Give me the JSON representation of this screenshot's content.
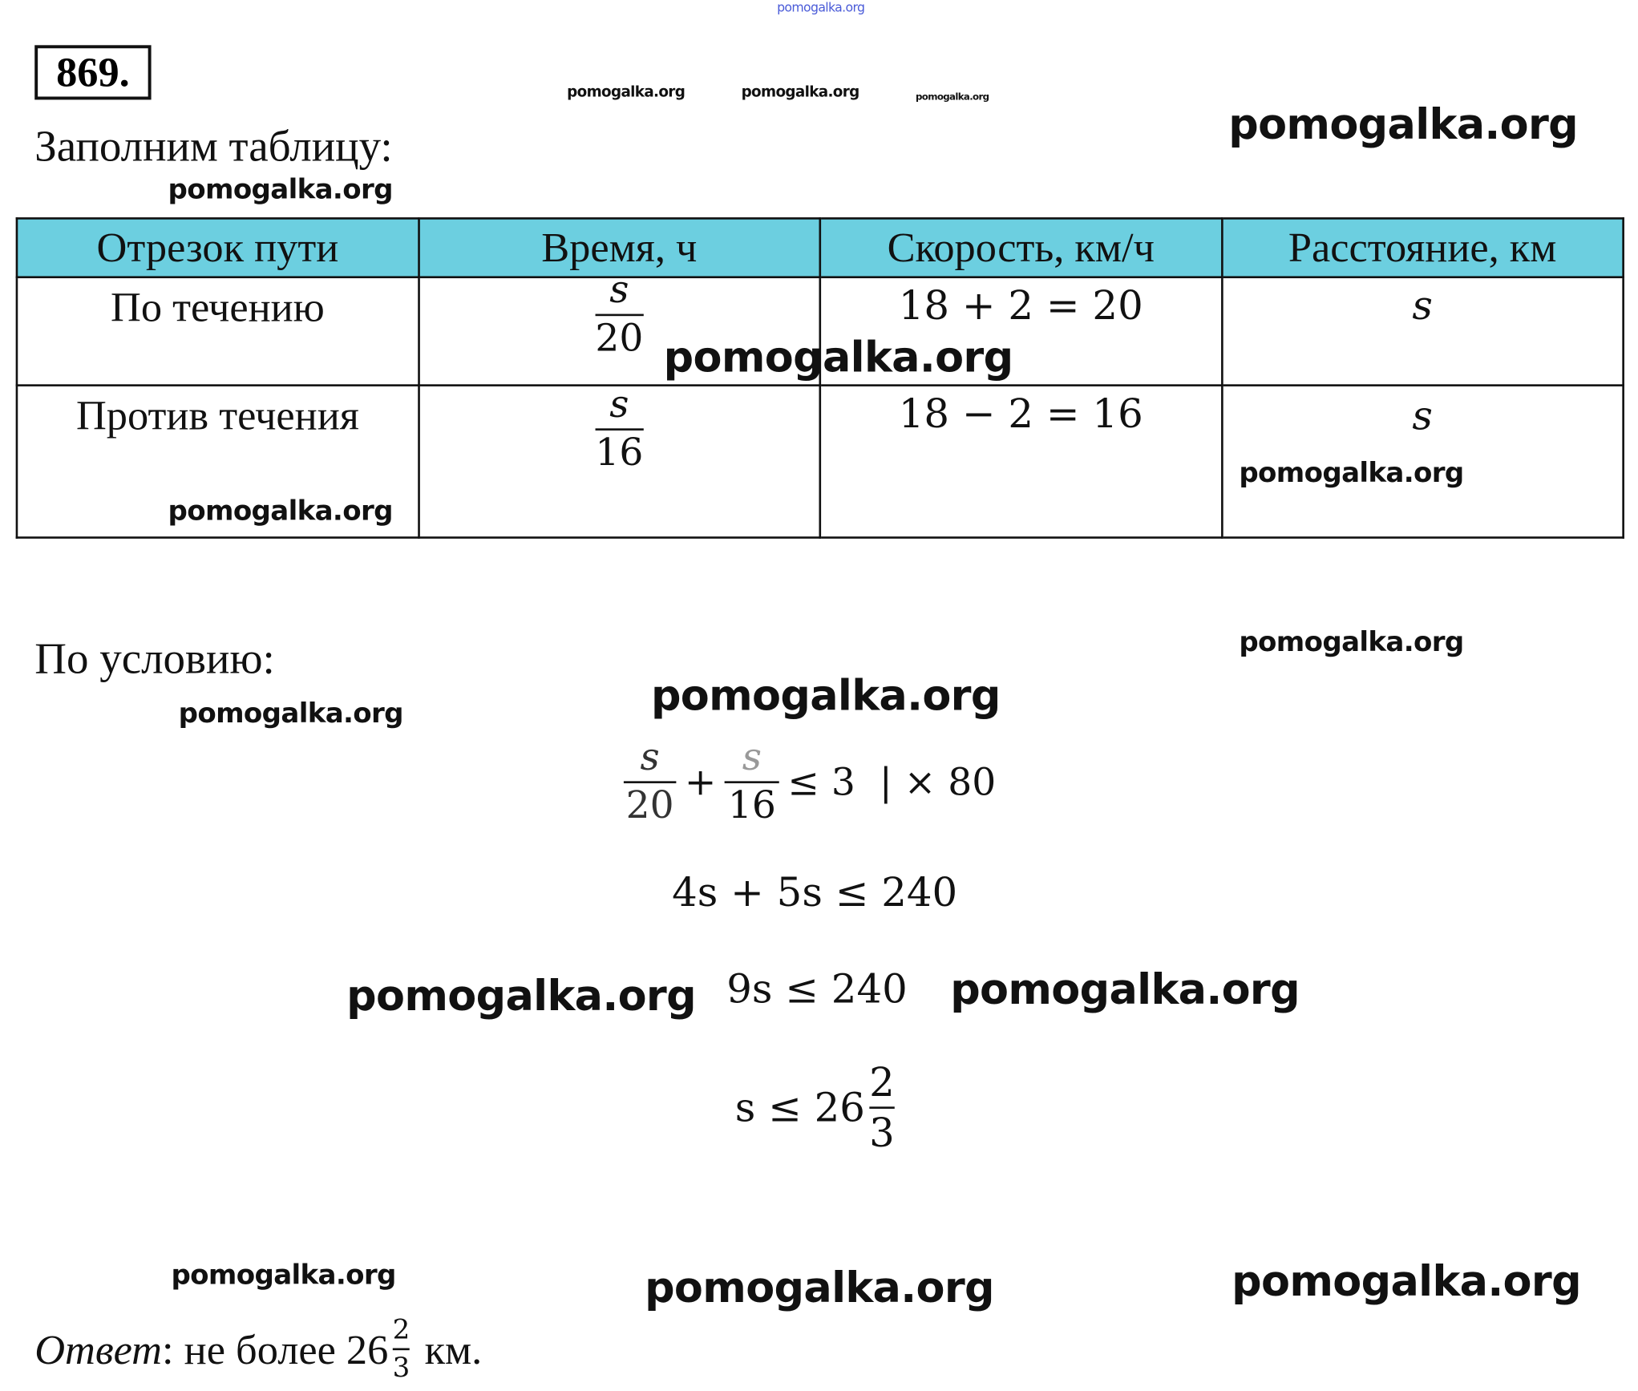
{
  "problem_number": "869.",
  "intro": "Заполним таблицу:",
  "table": {
    "header_bg": "#6ccfe0",
    "headers": [
      "Отрезок пути",
      "Время, ч",
      "Скорость, км/ч",
      "Расстояние, км"
    ],
    "rows": [
      {
        "segment": "По течению",
        "time_num": "s",
        "time_den": "20",
        "speed": "18 + 2 = 20",
        "distance": "s"
      },
      {
        "segment": "Против течения",
        "time_num": "s",
        "time_den": "16",
        "speed": "18 − 2 = 16",
        "distance": "s"
      }
    ]
  },
  "condition": "По условию:",
  "solution": {
    "eq1": {
      "n1": "s",
      "d1": "20",
      "plus": "+",
      "n2": "s",
      "d2": "16",
      "rest": "≤ 3  | × 80"
    },
    "eq2": "4s + 5s ≤ 240",
    "eq3": "9s ≤ 240",
    "eq4": {
      "lhs": "s ≤ 26",
      "num": "2",
      "den": "3"
    }
  },
  "answer": {
    "label": "Ответ",
    "text_before": ": не более 26",
    "num": "2",
    "den": "3",
    "text_after": " км."
  },
  "watermark": "pomogalka.org"
}
